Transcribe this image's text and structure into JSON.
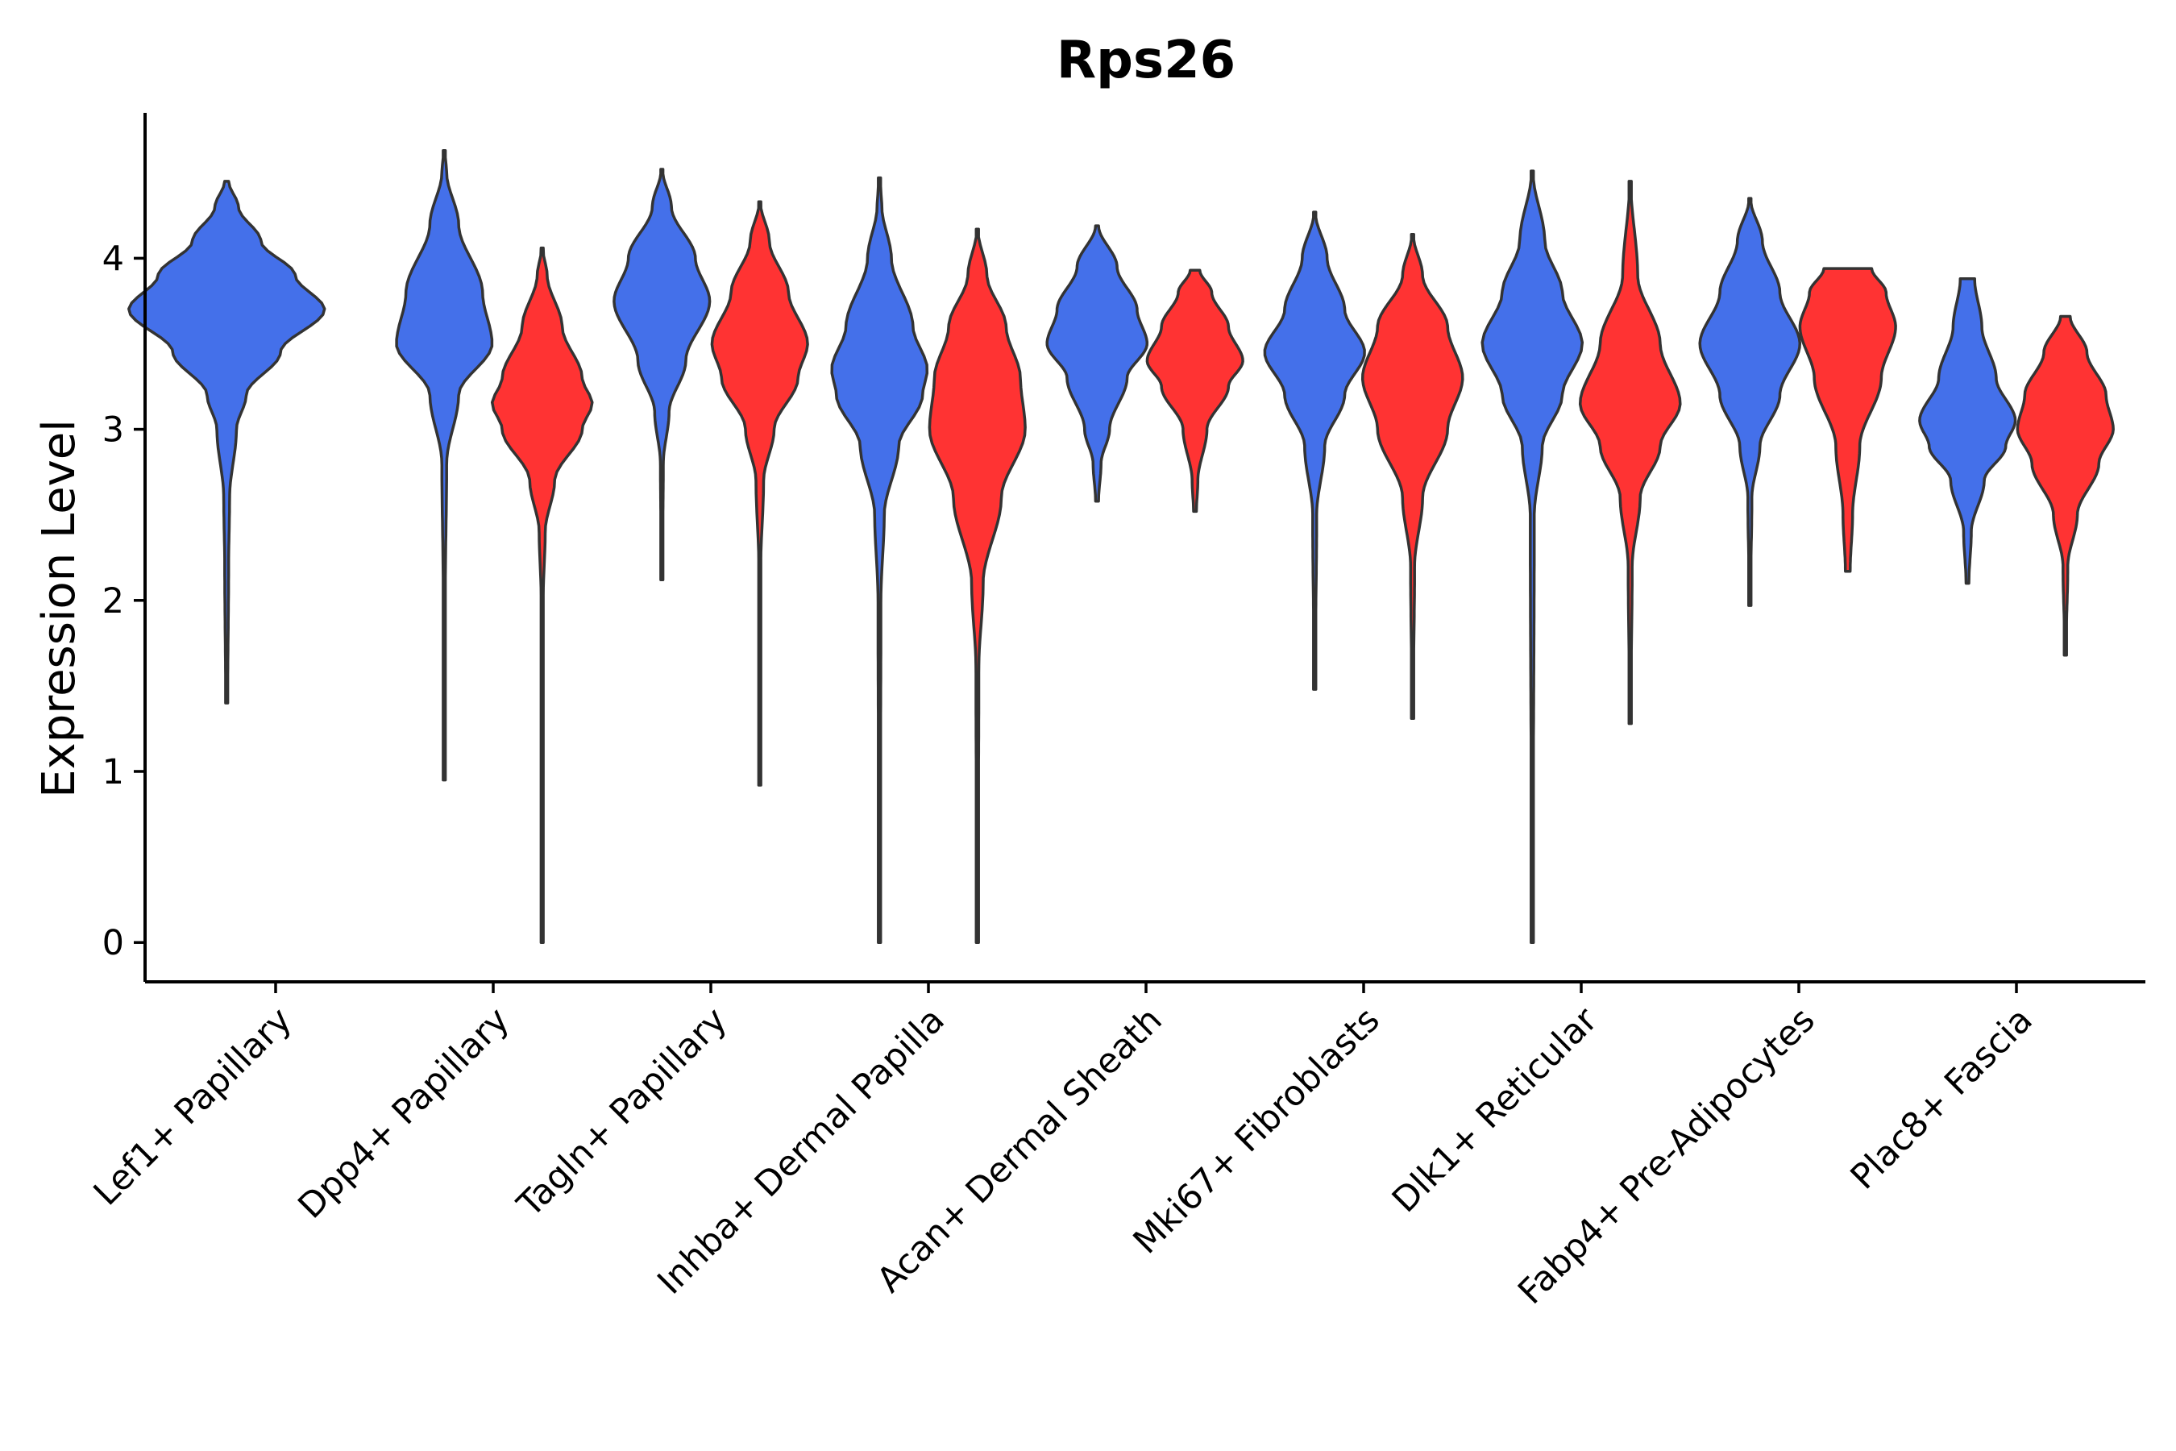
{
  "chart_data": {
    "type": "violin",
    "title": "Rps26",
    "xlabel": "",
    "ylabel": "Expression Level",
    "ylim": [
      -0.23,
      4.85
    ],
    "yticks": [
      0,
      1,
      2,
      3,
      4
    ],
    "grid": false,
    "legend": "none",
    "categories": [
      "Lef1+ Papillary",
      "Dpp4+ Papillary",
      "Tagln+ Papillary",
      "Inhba+ Dermal Papilla",
      "Acan+ Dermal Sheath",
      "Mki67+ Fibroblasts",
      "Dlk1+ Reticular",
      "Fabp4+ Pre-Adipocytes",
      "Plac8+ Fascia"
    ],
    "group_colors": {
      "blue": "#4470EA",
      "red": "#FF3333"
    },
    "violins": [
      {
        "category": 0,
        "group": "blue",
        "min": 1.4,
        "max": 4.45,
        "width": 0.9,
        "density": [
          [
            1.4,
            0.01
          ],
          [
            2.2,
            0.02
          ],
          [
            2.6,
            0.03
          ],
          [
            3.0,
            0.1
          ],
          [
            3.2,
            0.2
          ],
          [
            3.45,
            0.55
          ],
          [
            3.7,
            1.0
          ],
          [
            3.9,
            0.7
          ],
          [
            4.1,
            0.35
          ],
          [
            4.3,
            0.12
          ],
          [
            4.45,
            0.02
          ]
        ]
      },
      {
        "category": 1,
        "group": "blue",
        "min": 0.95,
        "max": 4.63,
        "width": 0.44,
        "density": [
          [
            0.95,
            0.01
          ],
          [
            2.0,
            0.02
          ],
          [
            2.8,
            0.05
          ],
          [
            3.2,
            0.3
          ],
          [
            3.5,
            1.0
          ],
          [
            3.8,
            0.8
          ],
          [
            4.2,
            0.3
          ],
          [
            4.5,
            0.05
          ],
          [
            4.63,
            0.01
          ]
        ]
      },
      {
        "category": 1,
        "group": "red",
        "min": 0.0,
        "max": 4.06,
        "width": 0.46,
        "density": [
          [
            0.0,
            0.01
          ],
          [
            2.0,
            0.02
          ],
          [
            2.4,
            0.06
          ],
          [
            2.7,
            0.25
          ],
          [
            3.0,
            0.8
          ],
          [
            3.15,
            1.0
          ],
          [
            3.3,
            0.8
          ],
          [
            3.6,
            0.4
          ],
          [
            3.9,
            0.1
          ],
          [
            4.06,
            0.01
          ]
        ]
      },
      {
        "category": 2,
        "group": "blue",
        "min": 2.12,
        "max": 4.52,
        "width": 0.44,
        "density": [
          [
            2.12,
            0.01
          ],
          [
            2.8,
            0.03
          ],
          [
            3.1,
            0.15
          ],
          [
            3.4,
            0.5
          ],
          [
            3.75,
            1.0
          ],
          [
            4.0,
            0.7
          ],
          [
            4.3,
            0.2
          ],
          [
            4.52,
            0.01
          ]
        ]
      },
      {
        "category": 2,
        "group": "red",
        "min": 0.92,
        "max": 4.33,
        "width": 0.44,
        "density": [
          [
            0.92,
            0.01
          ],
          [
            2.2,
            0.02
          ],
          [
            2.7,
            0.08
          ],
          [
            3.0,
            0.3
          ],
          [
            3.3,
            0.8
          ],
          [
            3.5,
            1.0
          ],
          [
            3.8,
            0.6
          ],
          [
            4.1,
            0.2
          ],
          [
            4.33,
            0.01
          ]
        ]
      },
      {
        "category": 3,
        "group": "blue",
        "min": 0.0,
        "max": 4.47,
        "width": 0.44,
        "density": [
          [
            0.0,
            0.01
          ],
          [
            2.0,
            0.03
          ],
          [
            2.5,
            0.1
          ],
          [
            2.9,
            0.4
          ],
          [
            3.2,
            0.9
          ],
          [
            3.35,
            1.0
          ],
          [
            3.6,
            0.7
          ],
          [
            4.0,
            0.25
          ],
          [
            4.3,
            0.05
          ],
          [
            4.47,
            0.01
          ]
        ]
      },
      {
        "category": 3,
        "group": "red",
        "min": 0.0,
        "max": 4.17,
        "width": 0.44,
        "density": [
          [
            0.0,
            0.01
          ],
          [
            1.6,
            0.03
          ],
          [
            2.1,
            0.12
          ],
          [
            2.6,
            0.5
          ],
          [
            3.0,
            1.0
          ],
          [
            3.3,
            0.9
          ],
          [
            3.6,
            0.6
          ],
          [
            3.9,
            0.2
          ],
          [
            4.17,
            0.01
          ]
        ]
      },
      {
        "category": 4,
        "group": "blue",
        "min": 2.58,
        "max": 4.19,
        "width": 0.46,
        "density": [
          [
            2.58,
            0.03
          ],
          [
            2.8,
            0.08
          ],
          [
            3.0,
            0.25
          ],
          [
            3.3,
            0.6
          ],
          [
            3.5,
            1.0
          ],
          [
            3.7,
            0.8
          ],
          [
            3.95,
            0.4
          ],
          [
            4.19,
            0.03
          ]
        ]
      },
      {
        "category": 4,
        "group": "red",
        "min": 2.52,
        "max": 3.93,
        "width": 0.44,
        "density": [
          [
            2.52,
            0.03
          ],
          [
            2.7,
            0.06
          ],
          [
            3.0,
            0.25
          ],
          [
            3.25,
            0.7
          ],
          [
            3.4,
            1.0
          ],
          [
            3.6,
            0.7
          ],
          [
            3.8,
            0.35
          ],
          [
            3.93,
            0.1
          ]
        ]
      },
      {
        "category": 5,
        "group": "blue",
        "min": 1.48,
        "max": 4.27,
        "width": 0.46,
        "density": [
          [
            1.48,
            0.01
          ],
          [
            2.5,
            0.04
          ],
          [
            2.9,
            0.2
          ],
          [
            3.2,
            0.6
          ],
          [
            3.45,
            1.0
          ],
          [
            3.7,
            0.6
          ],
          [
            4.0,
            0.25
          ],
          [
            4.27,
            0.01
          ]
        ]
      },
      {
        "category": 5,
        "group": "red",
        "min": 1.31,
        "max": 4.14,
        "width": 0.46,
        "density": [
          [
            1.31,
            0.01
          ],
          [
            2.2,
            0.04
          ],
          [
            2.6,
            0.2
          ],
          [
            3.0,
            0.7
          ],
          [
            3.3,
            1.0
          ],
          [
            3.6,
            0.7
          ],
          [
            3.9,
            0.2
          ],
          [
            4.14,
            0.01
          ]
        ]
      },
      {
        "category": 6,
        "group": "blue",
        "min": 0.0,
        "max": 4.51,
        "width": 0.46,
        "density": [
          [
            0.0,
            0.01
          ],
          [
            2.5,
            0.04
          ],
          [
            2.9,
            0.2
          ],
          [
            3.2,
            0.6
          ],
          [
            3.5,
            1.0
          ],
          [
            3.8,
            0.6
          ],
          [
            4.1,
            0.25
          ],
          [
            4.51,
            0.01
          ]
        ]
      },
      {
        "category": 6,
        "group": "red",
        "min": 1.28,
        "max": 4.45,
        "width": 0.46,
        "density": [
          [
            1.28,
            0.01
          ],
          [
            2.2,
            0.04
          ],
          [
            2.6,
            0.2
          ],
          [
            2.9,
            0.6
          ],
          [
            3.15,
            1.0
          ],
          [
            3.5,
            0.6
          ],
          [
            3.9,
            0.15
          ],
          [
            4.45,
            0.01
          ]
        ]
      },
      {
        "category": 7,
        "group": "blue",
        "min": 1.97,
        "max": 4.35,
        "width": 0.46,
        "density": [
          [
            1.97,
            0.01
          ],
          [
            2.6,
            0.04
          ],
          [
            2.9,
            0.2
          ],
          [
            3.2,
            0.6
          ],
          [
            3.5,
            1.0
          ],
          [
            3.8,
            0.6
          ],
          [
            4.1,
            0.25
          ],
          [
            4.35,
            0.01
          ]
        ]
      },
      {
        "category": 7,
        "group": "red",
        "min": 2.17,
        "max": 3.94,
        "width": 0.44,
        "density": [
          [
            2.17,
            0.05
          ],
          [
            2.5,
            0.1
          ],
          [
            2.9,
            0.25
          ],
          [
            3.3,
            0.7
          ],
          [
            3.6,
            1.0
          ],
          [
            3.8,
            0.8
          ],
          [
            3.94,
            0.5
          ]
        ]
      },
      {
        "category": 8,
        "group": "blue",
        "min": 2.1,
        "max": 3.88,
        "width": 0.44,
        "density": [
          [
            2.1,
            0.03
          ],
          [
            2.4,
            0.08
          ],
          [
            2.7,
            0.35
          ],
          [
            2.9,
            0.8
          ],
          [
            3.05,
            1.0
          ],
          [
            3.3,
            0.6
          ],
          [
            3.6,
            0.3
          ],
          [
            3.88,
            0.15
          ]
        ]
      },
      {
        "category": 8,
        "group": "red",
        "min": 1.68,
        "max": 3.66,
        "width": 0.44,
        "density": [
          [
            1.68,
            0.01
          ],
          [
            2.2,
            0.05
          ],
          [
            2.5,
            0.25
          ],
          [
            2.8,
            0.7
          ],
          [
            3.0,
            1.0
          ],
          [
            3.2,
            0.85
          ],
          [
            3.45,
            0.45
          ],
          [
            3.66,
            0.1
          ]
        ]
      }
    ]
  }
}
